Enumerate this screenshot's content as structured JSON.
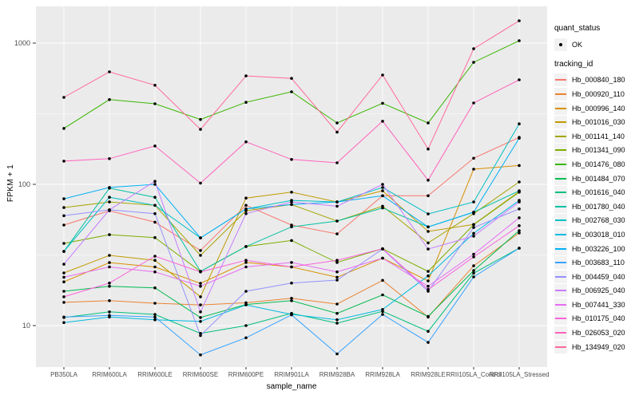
{
  "axes": {
    "y_tick_labels": [
      "10",
      "100",
      "1000"
    ],
    "x_label": "sample_name",
    "y_label": "FPKM + 1"
  },
  "legend": {
    "quant_status": {
      "title": "quant_status",
      "items": [
        {
          "label": "OK",
          "marker": "black-point"
        }
      ]
    },
    "tracking_id": {
      "title": "tracking_id"
    }
  },
  "icons": {
    "legend_key_marker": "point-icon"
  },
  "colors": {
    "panel_bg": "#EBEBEB",
    "grid": "#FFFFFF",
    "tick_text": "#4D4D4D",
    "marker": "#000000",
    "legend_key_bg": "#F2F2F2"
  },
  "chart_data": {
    "type": "line",
    "x": [
      "PB350LA",
      "RRIM600LA",
      "RRIM600LE",
      "RRIM600SE",
      "RRIM600PE",
      "RRIM901LA",
      "RRIM928BA",
      "RRIM928LA",
      "RRIM928LE",
      "RRII105LA_Control",
      "RRII105LA_Stressed"
    ],
    "xlabel": "sample_name",
    "ylabel": "FPKM + 1",
    "y_scale": "log10",
    "y_ticks": [
      10,
      100,
      1000
    ],
    "ylim": [
      5,
      1800
    ],
    "grid": true,
    "legend_position": "right",
    "quant_status": "OK",
    "marker": "black point on every observation",
    "series": [
      {
        "name": "Hb_000840_180",
        "color": "#F8766D",
        "values": [
          51.5,
          65,
          54,
          34,
          71,
          51.5,
          44.6,
          83,
          83,
          153,
          215
        ]
      },
      {
        "name": "Hb_000920_110",
        "color": "#EA8331",
        "values": [
          14.6,
          15.0,
          14.4,
          14.0,
          14.5,
          15.6,
          14.2,
          20.9,
          11.5,
          26.5,
          45.3
        ]
      },
      {
        "name": "Hb_000996_140",
        "color": "#D89000",
        "values": [
          20.4,
          27.9,
          26.0,
          19.9,
          28.0,
          26.0,
          22.0,
          30.0,
          20.7,
          128,
          136
        ]
      },
      {
        "name": "Hb_001016_030",
        "color": "#C09B00",
        "values": [
          23.6,
          31.4,
          29.0,
          16.0,
          80,
          88,
          75,
          90,
          46.4,
          52,
          89
        ]
      },
      {
        "name": "Hb_001141_140",
        "color": "#A3A500",
        "values": [
          68.5,
          75,
          71,
          31.4,
          65,
          72,
          55,
          70,
          38.5,
          62,
          104
        ]
      },
      {
        "name": "Hb_001341_090",
        "color": "#7CAE00",
        "values": [
          38.2,
          44,
          42,
          24.2,
          36.3,
          40,
          28,
          35,
          24.2,
          51.8,
          88
        ]
      },
      {
        "name": "Hb_001476_080",
        "color": "#39B600",
        "values": [
          249,
          398,
          372,
          288,
          381,
          452,
          272,
          375,
          272,
          731,
          1040
        ]
      },
      {
        "name": "Hb_001484_070",
        "color": "#00BB4E",
        "values": [
          17.5,
          19,
          18.5,
          11.4,
          14.1,
          15,
          12.2,
          16.5,
          11.6,
          24.5,
          47
        ]
      },
      {
        "name": "Hb_001616_040",
        "color": "#00BF7D",
        "values": [
          11.4,
          12.5,
          12,
          8.8,
          10,
          12.2,
          10.4,
          12.6,
          9.1,
          23.5,
          35.3
        ]
      },
      {
        "name": "Hb_001780_040",
        "color": "#00C1A3",
        "values": [
          33.5,
          94,
          81,
          24.2,
          36.3,
          50,
          55,
          68,
          50,
          63.5,
          90
        ]
      },
      {
        "name": "Hb_002768_030",
        "color": "#00BFC4",
        "values": [
          33.5,
          81,
          71,
          41.8,
          67,
          77,
          75,
          95,
          61.7,
          75,
          268
        ]
      },
      {
        "name": "Hb_003018_010",
        "color": "#00BAE0",
        "values": [
          10.5,
          11.5,
          11,
          10.7,
          14,
          12,
          11,
          13,
          22.5,
          45,
          77
        ]
      },
      {
        "name": "Hb_003226_100",
        "color": "#00B0F6",
        "values": [
          79,
          95,
          100,
          41.8,
          67,
          72,
          75,
          83,
          50,
          63.5,
          212
        ]
      },
      {
        "name": "Hb_003683_110",
        "color": "#35A2FF",
        "values": [
          11.5,
          11.8,
          11.5,
          6.2,
          8.2,
          11.9,
          6.3,
          12.0,
          7.6,
          22.1,
          35.3
        ]
      },
      {
        "name": "Hb_004459_040",
        "color": "#9590FF",
        "values": [
          60,
          66,
          62,
          8.5,
          17.5,
          20,
          21,
          34.8,
          17.5,
          49.5,
          67
        ]
      },
      {
        "name": "Hb_006925_040",
        "color": "#C77CFF",
        "values": [
          27.2,
          66,
          105,
          12.5,
          62,
          75,
          70,
          100,
          34.8,
          43,
          75
        ]
      },
      {
        "name": "Hb_007441_330",
        "color": "#E76BF3",
        "values": [
          22,
          26,
          24,
          19,
          26,
          28,
          24,
          30,
          19,
          32,
          58
        ]
      },
      {
        "name": "Hb_010175_040",
        "color": "#FA62DB",
        "values": [
          16,
          20,
          31,
          24,
          29,
          26,
          29,
          35,
          18,
          30.6,
          51
        ]
      },
      {
        "name": "Hb_026053_020",
        "color": "#FF62BC",
        "values": [
          146,
          152,
          187,
          102,
          200,
          150,
          142,
          280,
          107,
          377,
          550
        ]
      },
      {
        "name": "Hb_134949_020",
        "color": "#FF6A98",
        "values": [
          413,
          626,
          503,
          245,
          586,
          563,
          234,
          594,
          178,
          912,
          1440
        ]
      }
    ]
  }
}
